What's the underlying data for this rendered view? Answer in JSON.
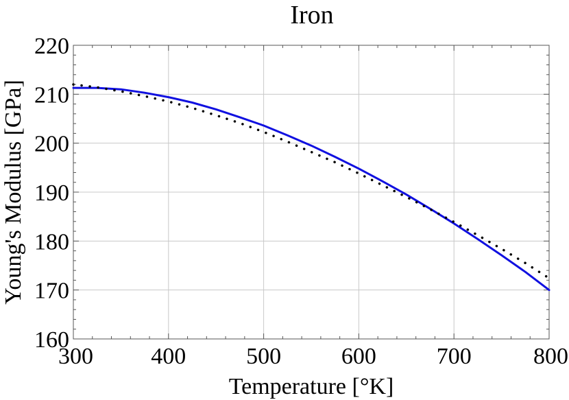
{
  "chart_data": {
    "type": "line",
    "title": "Iron",
    "xlabel": "Temperature [°K]",
    "ylabel": "Young's Modulus [GPa]",
    "xlim": [
      300,
      800
    ],
    "ylim": [
      160,
      220
    ],
    "xticks": [
      300,
      400,
      500,
      600,
      700,
      800
    ],
    "yticks": [
      160,
      170,
      180,
      190,
      200,
      210,
      220
    ],
    "grid": true,
    "series": [
      {
        "style": "solid",
        "color": "#1010e0",
        "x": [
          300,
          325,
          350,
          375,
          400,
          425,
          450,
          475,
          500,
          525,
          550,
          575,
          600,
          625,
          650,
          675,
          700,
          725,
          750,
          775,
          800
        ],
        "y": [
          211.3,
          211.3,
          211.0,
          210.3,
          209.4,
          208.3,
          206.9,
          205.3,
          203.6,
          201.6,
          199.5,
          197.2,
          194.8,
          192.2,
          189.5,
          186.6,
          183.6,
          180.4,
          177.1,
          173.7,
          170.0
        ]
      },
      {
        "style": "dotted",
        "color": "#000000",
        "x": [
          300,
          325,
          350,
          375,
          400,
          425,
          450,
          475,
          500,
          525,
          550,
          575,
          600,
          625,
          650,
          675,
          700,
          725,
          750,
          775,
          800
        ],
        "y": [
          212.0,
          211.4,
          210.6,
          209.6,
          208.5,
          207.2,
          205.7,
          204.1,
          202.3,
          200.3,
          198.2,
          196.1,
          193.8,
          191.4,
          189.0,
          186.5,
          183.9,
          181.2,
          178.4,
          175.5,
          172.4
        ]
      }
    ]
  }
}
